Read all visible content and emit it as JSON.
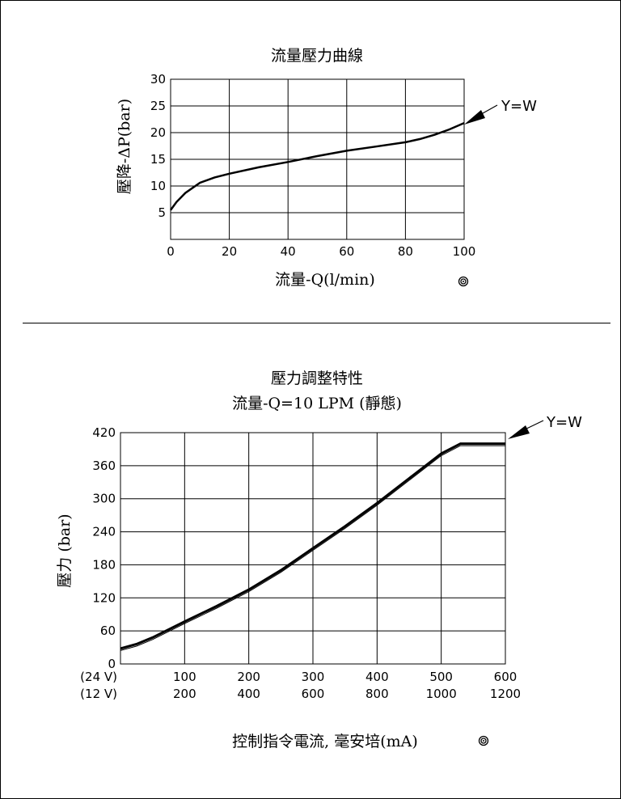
{
  "chart_data": [
    {
      "type": "line",
      "title": "流量壓力曲線",
      "xlabel": "流量-Q(l/min)",
      "ylabel": "壓降-ΔP(bar)",
      "xlim": [
        0,
        100
      ],
      "ylim": [
        0,
        30
      ],
      "xticks": [
        "0",
        "20",
        "40",
        "60",
        "80",
        "100"
      ],
      "yticks": [
        "5",
        "10",
        "15",
        "20",
        "25",
        "30"
      ],
      "grid": true,
      "annotation": "Y=W",
      "mark_icon": "target-symbol",
      "series": [
        {
          "x": [
            0,
            2,
            5,
            10,
            15,
            20,
            30,
            40,
            50,
            60,
            70,
            80,
            85,
            90,
            95,
            100
          ],
          "values": [
            5.5,
            7.0,
            8.7,
            10.6,
            11.6,
            12.3,
            13.5,
            14.5,
            15.6,
            16.6,
            17.4,
            18.2,
            18.8,
            19.6,
            20.6,
            21.8
          ]
        }
      ]
    },
    {
      "type": "line",
      "title": "壓力調整特性",
      "subtitle": "流量-Q=10 LPM (靜態)",
      "xlabel": "控制指令電流, 毫安培(mA)",
      "ylabel": "壓力 (bar)",
      "xlim": [
        0,
        600
      ],
      "ylim": [
        0,
        420
      ],
      "x_secondary_scale": 2,
      "xticks_24v": [
        "(24 V)",
        "100",
        "200",
        "300",
        "400",
        "500",
        "600"
      ],
      "xticks_12v": [
        "(12 V)",
        "200",
        "400",
        "600",
        "800",
        "1000",
        "1200"
      ],
      "yticks": [
        "0",
        "60",
        "120",
        "180",
        "240",
        "300",
        "360",
        "420"
      ],
      "grid": true,
      "annotation": "Y=W",
      "mark_icon": "target-symbol",
      "series": [
        {
          "x": [
            0,
            25,
            50,
            100,
            150,
            200,
            250,
            300,
            350,
            400,
            450,
            500,
            530,
            550,
            575,
            600
          ],
          "values": [
            28,
            36,
            48,
            77,
            105,
            135,
            170,
            210,
            250,
            292,
            337,
            382,
            400,
            400,
            400,
            400
          ]
        }
      ]
    }
  ]
}
